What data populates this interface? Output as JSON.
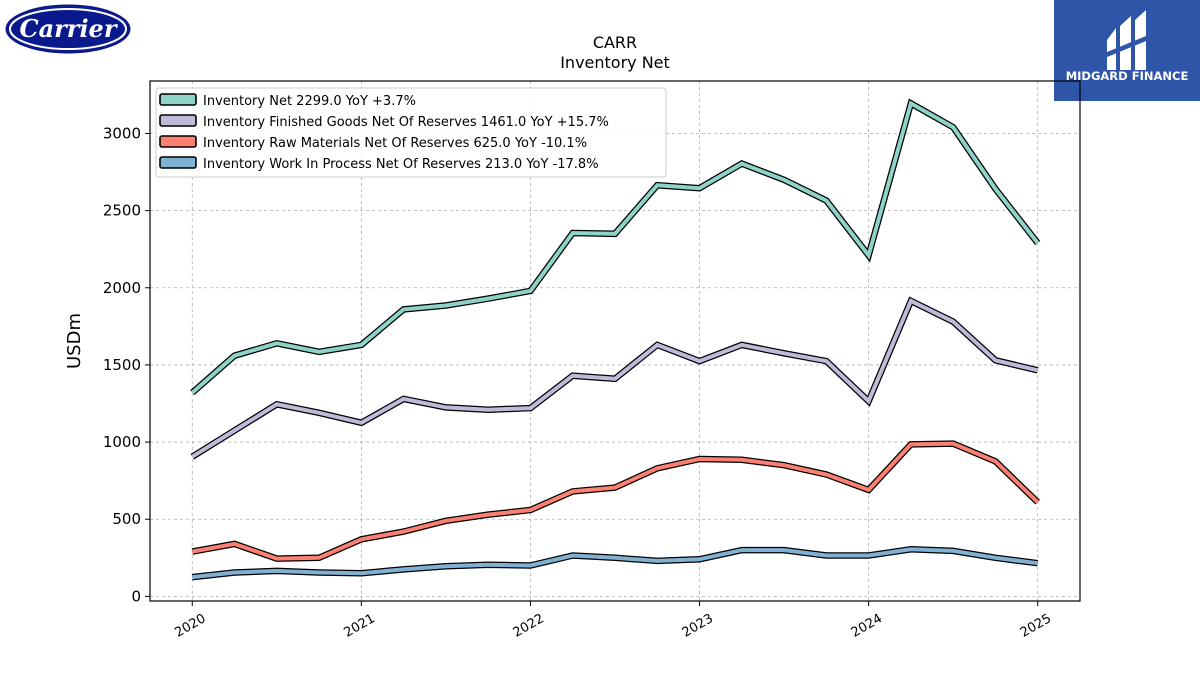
{
  "logos": {
    "left_brand": "Carrier",
    "right_brand": "MIDGARD FINANCE"
  },
  "colors": {
    "midgard_blue": "#2f55a8",
    "carrier_blue": "#0a1a8c",
    "grid": "#b0b0b0"
  },
  "chart_data": {
    "type": "line",
    "title": "CARR",
    "subtitle": "Inventory Net",
    "xlabel": "",
    "ylabel": "USDm",
    "xlim": [
      2019.75,
      2025.25
    ],
    "ylim": [
      -30,
      3340
    ],
    "yticks": [
      0,
      500,
      1000,
      1500,
      2000,
      2500,
      3000
    ],
    "xticks": [
      2020,
      2021,
      2022,
      2023,
      2024,
      2025
    ],
    "grid": true,
    "legend_position": "top-left",
    "x": [
      2020.0,
      2020.25,
      2020.5,
      2020.75,
      2021.0,
      2021.25,
      2021.5,
      2021.75,
      2022.0,
      2022.25,
      2022.5,
      2022.75,
      2023.0,
      2023.25,
      2023.5,
      2023.75,
      2024.0,
      2024.25,
      2024.5,
      2024.75,
      2025.0
    ],
    "series": [
      {
        "name": "Inventory Net",
        "label": "Inventory Net  2299.0 YoY +3.7%",
        "color": "#8dd3c7",
        "values": [
          1320,
          1560,
          1640,
          1585,
          1630,
          1860,
          1885,
          1930,
          1980,
          2355,
          2350,
          2665,
          2645,
          2805,
          2700,
          2565,
          2210,
          3195,
          3040,
          2640,
          2290
        ]
      },
      {
        "name": "Inventory Finished Goods Net Of Reserves",
        "label": "Inventory Finished Goods Net Of Reserves  1461.0 YoY +15.7%",
        "color": "#bebada",
        "values": [
          905,
          1075,
          1245,
          1190,
          1125,
          1280,
          1225,
          1210,
          1220,
          1430,
          1410,
          1630,
          1525,
          1630,
          1575,
          1525,
          1265,
          1915,
          1780,
          1530,
          1465
        ]
      },
      {
        "name": "Inventory Raw Materials Net Of Reserves",
        "label": "Inventory Raw Materials Net Of Reserves  625.0 YoY -10.1%",
        "color": "#fb8072",
        "values": [
          290,
          340,
          245,
          250,
          370,
          420,
          490,
          530,
          560,
          680,
          705,
          830,
          890,
          885,
          850,
          790,
          690,
          985,
          990,
          875,
          610
        ]
      },
      {
        "name": "Inventory Work In Process Net Of Reserves",
        "label": "Inventory Work In Process Net Of Reserves  213.0 YoY -17.8%",
        "color": "#80b1d3",
        "values": [
          125,
          155,
          165,
          155,
          150,
          175,
          195,
          205,
          200,
          265,
          250,
          230,
          240,
          300,
          300,
          265,
          265,
          305,
          295,
          250,
          215
        ]
      }
    ]
  }
}
